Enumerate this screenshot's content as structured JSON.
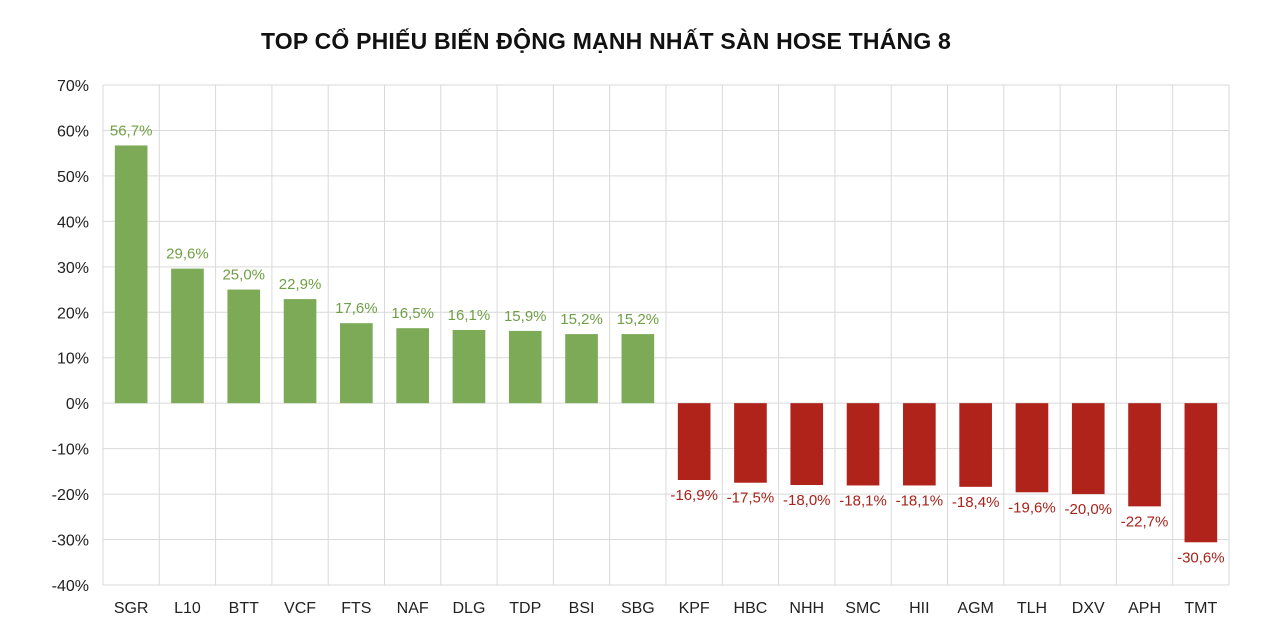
{
  "chart_data": {
    "type": "bar",
    "title": "TOP CỔ PHIẾU BIẾN ĐỘNG MẠNH NHẤT SÀN HOSE THÁNG 8",
    "xlabel": "",
    "ylabel": "",
    "ylim": [
      -40,
      70
    ],
    "yticks": [
      70,
      60,
      50,
      40,
      30,
      20,
      10,
      0,
      -10,
      -20,
      -30,
      -40
    ],
    "ytick_labels": [
      "70%",
      "60%",
      "50%",
      "40%",
      "30%",
      "20%",
      "10%",
      "0%",
      "-10%",
      "-20%",
      "-30%",
      "-40%"
    ],
    "grid": true,
    "legend": "none",
    "categories": [
      "SGR",
      "L10",
      "BTT",
      "VCF",
      "FTS",
      "NAF",
      "DLG",
      "TDP",
      "BSI",
      "SBG",
      "KPF",
      "HBC",
      "NHH",
      "SMC",
      "HII",
      "AGM",
      "TLH",
      "DXV",
      "APH",
      "TMT"
    ],
    "values": [
      56.7,
      29.6,
      25.0,
      22.9,
      17.6,
      16.5,
      16.1,
      15.9,
      15.2,
      15.2,
      -16.9,
      -17.5,
      -18.0,
      -18.1,
      -18.1,
      -18.4,
      -19.6,
      -20.0,
      -22.7,
      -30.6
    ],
    "data_labels": [
      "56,7%",
      "29,6%",
      "25,0%",
      "22,9%",
      "17,6%",
      "16,5%",
      "16,1%",
      "15,9%",
      "15,2%",
      "15,2%",
      "-16,9%",
      "-17,5%",
      "-18,0%",
      "-18,1%",
      "-18,1%",
      "-18,4%",
      "-19,6%",
      "-20,0%",
      "-22,7%",
      "-30,6%"
    ],
    "colors": {
      "positive": "#7daa57",
      "negative": "#b0231b",
      "positive_label": "#6f9f45",
      "negative_label": "#a8221a",
      "grid": "#d9d9d9"
    }
  }
}
